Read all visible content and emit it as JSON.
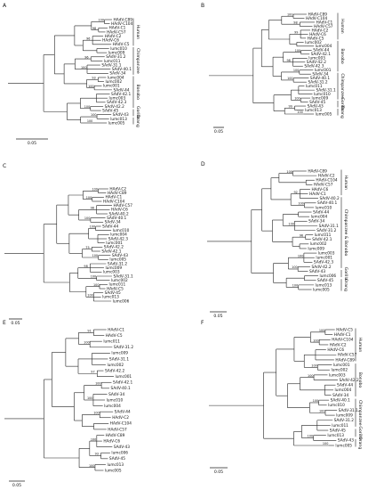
{
  "panels": [
    {
      "letter": "A",
      "scale": "0.05",
      "leaves": [
        "HAdV-C89",
        "HAdV-C104",
        "HAdV-C1",
        "HAdV-C57",
        "HAdV-C2",
        "HAdV-C6",
        "HAdV-C5",
        "lumc010",
        "lumc009",
        "SAdV-31.2",
        "lumc011",
        "SAdV-31.1",
        "SAdV-40.1",
        "SAdV-34",
        "lumc004",
        "lumc002",
        "lumc001",
        "SAdV-44",
        "SAdV-42.1",
        "lumc003",
        "SAdV-42.3",
        "SAdV-42.2",
        "SAdV-45",
        "SAdV-43",
        "lumc013",
        "lumc005"
      ],
      "boots": [
        "100",
        "98",
        "96",
        "96",
        "100",
        "93",
        "100",
        "100",
        "100",
        "100"
      ],
      "groups": [
        "Human",
        "Chimpanzee",
        "Bonobo",
        "Gorilla",
        "Orang"
      ]
    },
    {
      "letter": "B",
      "scale": "0.05",
      "leaves": [
        "HAdV-C89",
        "HAdV-C104",
        "HAdV-C1",
        "HAdV-C57",
        "HAdV-C2",
        "HAdV-C6",
        "HAdV-C5",
        "lumc002",
        "lumc004",
        "SAdV-44",
        "SAdV-42.1",
        "lumc003",
        "SAdV-42.2",
        "SAdV-42.3",
        "lumc001",
        "SAdV-34",
        "SAdV-40.1",
        "SAdV-31.2",
        "lumc011",
        "SAdV-31.1",
        "lumc010",
        "lumc009",
        "SAdV-45",
        "SAdV-43",
        "lumc013",
        "lumc005"
      ],
      "boots": [
        "100",
        "98",
        "99",
        "100",
        "98",
        "100",
        "100",
        "100",
        "99",
        "100"
      ],
      "groups": [
        "Human",
        "Bonobo",
        "Chimpanzee",
        "Gorilla",
        "Orang"
      ]
    },
    {
      "letter": "C",
      "scale": "0.05",
      "leaves": [
        "HAdV-C2",
        "HAdV-C89",
        "HAdV-C1",
        "HAdV-C104",
        "HAdV-C57",
        "HAdV-C6",
        "SAdV-40.2",
        "SAdV-40.1",
        "SAdV-34",
        "SAdV-44",
        "lumc010",
        "lumc004",
        "SAdV-42.3",
        "lumc001",
        "SAdV-42.2",
        "SAdV-42.1",
        "SAdV-43",
        "lumc005",
        "SAdV-31.2",
        "lumc009",
        "lumc003",
        "SAdV-31.1",
        "lumc002",
        "lumc011",
        "HAdV-C5",
        "SAdV-45",
        "lumc013",
        "lumc006"
      ],
      "boots": [
        "100",
        "100",
        "98",
        "100",
        "100",
        "75",
        "100",
        "98",
        "100",
        "100",
        "100"
      ],
      "groups": []
    },
    {
      "letter": "D",
      "scale": "0.05",
      "leaves": [
        "HAdV-C89",
        "HAdV-C2",
        "HAdV-C104",
        "HAdV-C57",
        "HAdV-C6",
        "HAdV-C1",
        "SAdV-40.2",
        "SAdV-40.1",
        "lumc010",
        "SAdV-44",
        "lumc004",
        "SAdV-34",
        "SAdV-31.1",
        "SAdV-31.2",
        "lumc011",
        "SAdV-42.1",
        "lumc002",
        "lumc009",
        "lumc003",
        "lumc001",
        "SAdV-42.3",
        "SAdV-42.2",
        "SAdV-43",
        "lumc006",
        "SAdV-45",
        "lumc013",
        "lumc005"
      ],
      "boots": [
        "100",
        "92",
        "100",
        "100",
        "96",
        "100",
        "100",
        "100"
      ],
      "groups": [
        "Human",
        "Chimpanzee & Bonobo",
        "Gorilla",
        "Orang"
      ]
    },
    {
      "letter": "E",
      "scale": "0.05",
      "leaves": [
        "HAdV-C1",
        "HAdV-C5",
        "lumc011",
        "SAdV-31.2",
        "lumc009",
        "SAdV-31.1",
        "lumc002",
        "SAdV-42.2",
        "lumc001",
        "SAdV-42.1",
        "SAdV-40.1",
        "SAdV-34",
        "lumc010",
        "lumc004",
        "SAdV-44",
        "HAdV-C2",
        "HAdV-C104",
        "HAdV-C57",
        "HAdV-C89",
        "HAdV-C6",
        "SAdV-43",
        "lumc006",
        "SAdV-45",
        "lumc013",
        "lumc005"
      ],
      "boots": [
        "91",
        "100",
        "97",
        "100",
        "100",
        "100",
        "100",
        "93",
        "100"
      ],
      "groups": []
    },
    {
      "letter": "F",
      "scale": "0.05",
      "leaves": [
        "HAdV-C5",
        "HAdV-C1",
        "HAdV-C104",
        "HAdV-C2",
        "HAdV-C6",
        "HAdV-C57",
        "HAdV-C89",
        "lumc001",
        "lumc002",
        "lumc003",
        "SAdV-42.2",
        "SAdV-44",
        "lumc004",
        "SAdV-34",
        "SAdV-40.1",
        "lumc010",
        "SAdV-31.1",
        "lumc009",
        "SAdV-31.2",
        "lumc011",
        "SAdV-45",
        "lumc013",
        "SAdV-43",
        "lumc005"
      ],
      "boots": [
        "100",
        "100",
        "100",
        "100",
        "100",
        "100",
        "100",
        "100"
      ],
      "groups": [
        "Human",
        "Bonobo",
        "Chimpanzee",
        "Gorilla",
        "Orang"
      ]
    }
  ]
}
